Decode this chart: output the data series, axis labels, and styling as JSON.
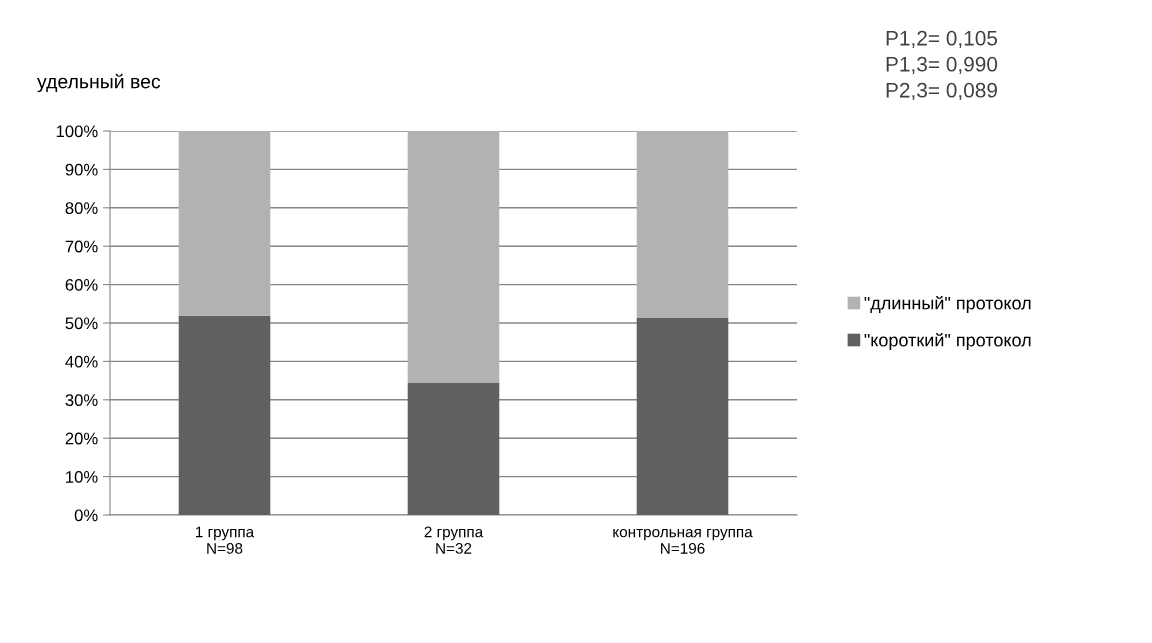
{
  "chart_data": {
    "type": "bar",
    "stacked": true,
    "ylabel": "удельный вес",
    "categories": [
      "1 группа\nN=98",
      "2 группа\nN=32",
      "контрольная группа\nN=196"
    ],
    "series": [
      {
        "name": "\"короткий\" протокол",
        "color": "#606060",
        "values": [
          51.9,
          34.5,
          51.3
        ]
      },
      {
        "name": "\"длинный\" протокол",
        "color": "#b2b2b2",
        "values": [
          48.1,
          65.5,
          48.7
        ]
      }
    ],
    "ylim": [
      0,
      100
    ],
    "yticks": [
      {
        "value": 0,
        "label": "0%"
      },
      {
        "value": 10,
        "label": "10%"
      },
      {
        "value": 20,
        "label": "20%"
      },
      {
        "value": 30,
        "label": "30%"
      },
      {
        "value": 40,
        "label": "40%"
      },
      {
        "value": 50,
        "label": "50%"
      },
      {
        "value": 60,
        "label": "60%"
      },
      {
        "value": 70,
        "label": "70%"
      },
      {
        "value": 80,
        "label": "80%"
      },
      {
        "value": 90,
        "label": "90%"
      },
      {
        "value": 100,
        "label": "100%"
      }
    ],
    "grid": "y",
    "legend": "right",
    "annotations": [
      "P1,2= 0,105",
      "P1,3= 0,990",
      "P2,3= 0,089"
    ]
  }
}
